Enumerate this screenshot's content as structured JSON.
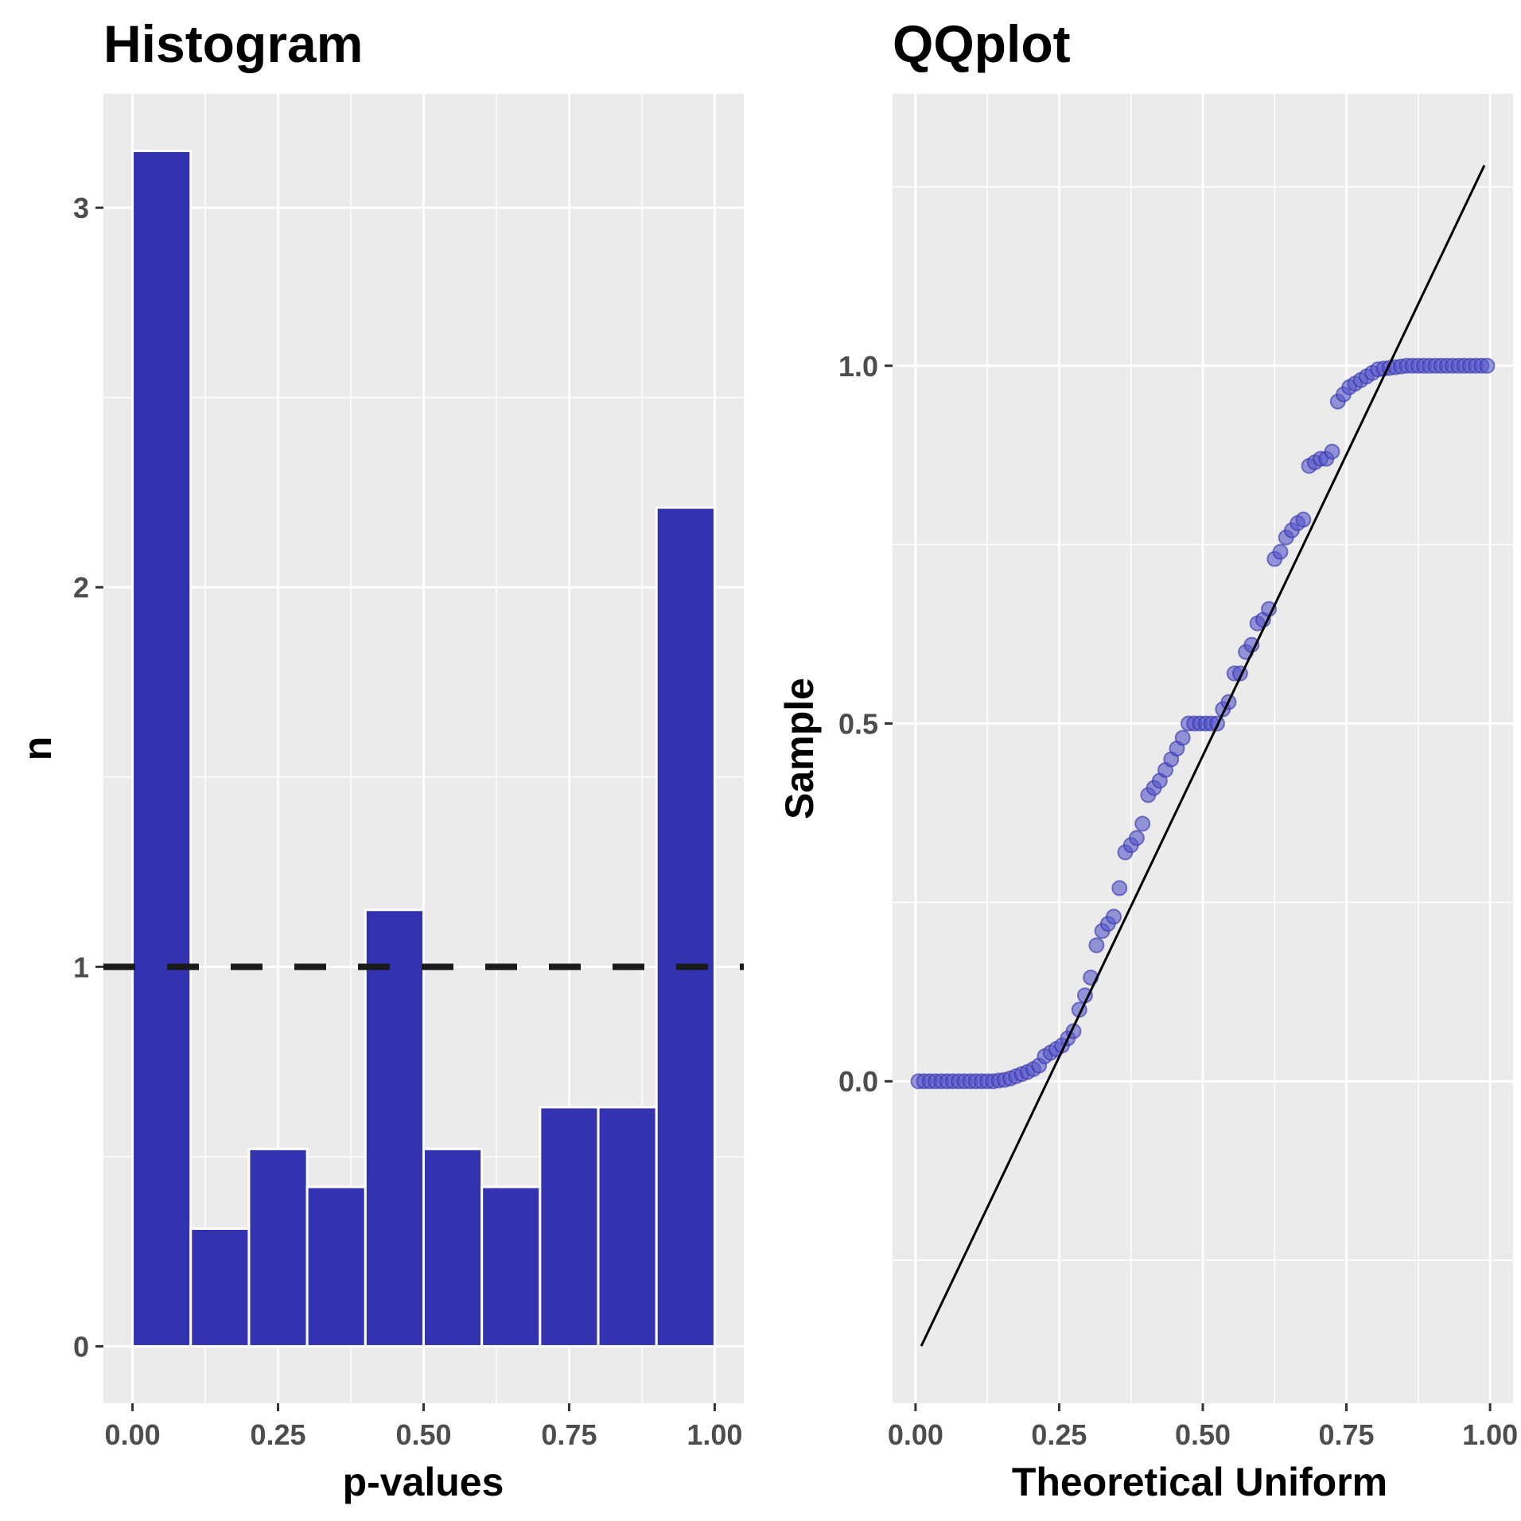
{
  "chart_data": [
    {
      "type": "bar",
      "title": "Histogram",
      "xlabel": "p-values",
      "ylabel": "n",
      "xlim": [
        -0.05,
        1.05
      ],
      "ylim": [
        -0.15,
        3.3
      ],
      "x_ticks": [
        0.0,
        0.25,
        0.5,
        0.75,
        1.0
      ],
      "x_tick_labels": [
        "0.00",
        "0.25",
        "0.50",
        "0.75",
        "1.00"
      ],
      "y_ticks": [
        0,
        1,
        2,
        3
      ],
      "y_tick_labels": [
        "0",
        "1",
        "2",
        "3"
      ],
      "bin_width": 0.1,
      "bin_centers": [
        0.05,
        0.15,
        0.25,
        0.35,
        0.45,
        0.55,
        0.65,
        0.75,
        0.85,
        0.95
      ],
      "values": [
        3.15,
        0.31,
        0.52,
        0.42,
        1.15,
        0.52,
        0.42,
        0.63,
        0.63,
        2.21
      ],
      "reference_line": {
        "y": 1,
        "style": "dashed"
      },
      "bar_color": "#3333b2",
      "grid": true
    },
    {
      "type": "scatter",
      "title": "QQplot",
      "xlabel": "Theoretical Uniform",
      "ylabel": "Sample",
      "xlim": [
        -0.04,
        1.04
      ],
      "ylim": [
        -0.45,
        1.38
      ],
      "x_ticks": [
        0.0,
        0.25,
        0.5,
        0.75,
        1.0
      ],
      "x_tick_labels": [
        "0.00",
        "0.25",
        "0.50",
        "0.75",
        "1.00"
      ],
      "y_ticks": [
        0.0,
        0.5,
        1.0
      ],
      "y_tick_labels": [
        "0.0",
        "0.5",
        "1.0"
      ],
      "point_color": "#5555cc",
      "reference_line": {
        "x": [
          0.01,
          0.99
        ],
        "y": [
          -0.37,
          1.28
        ]
      },
      "grid": true,
      "points": {
        "x": [
          0.005,
          0.015,
          0.025,
          0.035,
          0.045,
          0.055,
          0.065,
          0.075,
          0.085,
          0.095,
          0.105,
          0.115,
          0.125,
          0.135,
          0.145,
          0.155,
          0.165,
          0.175,
          0.185,
          0.195,
          0.205,
          0.215,
          0.225,
          0.235,
          0.245,
          0.255,
          0.265,
          0.275,
          0.285,
          0.295,
          0.305,
          0.315,
          0.325,
          0.335,
          0.345,
          0.355,
          0.365,
          0.375,
          0.385,
          0.395,
          0.405,
          0.415,
          0.425,
          0.435,
          0.445,
          0.455,
          0.465,
          0.475,
          0.485,
          0.495,
          0.505,
          0.515,
          0.525,
          0.535,
          0.545,
          0.555,
          0.565,
          0.575,
          0.585,
          0.595,
          0.605,
          0.615,
          0.625,
          0.635,
          0.645,
          0.655,
          0.665,
          0.675,
          0.685,
          0.695,
          0.705,
          0.715,
          0.725,
          0.735,
          0.745,
          0.755,
          0.765,
          0.775,
          0.785,
          0.795,
          0.805,
          0.815,
          0.825,
          0.835,
          0.845,
          0.855,
          0.865,
          0.875,
          0.885,
          0.895,
          0.905,
          0.915,
          0.925,
          0.935,
          0.945,
          0.955,
          0.965,
          0.975,
          0.985,
          0.995
        ],
        "y": [
          0.0,
          0.0,
          0.0,
          0.0,
          0.0,
          0.0,
          0.0,
          0.0,
          0.0,
          0.0,
          0.0,
          0.0,
          0.0,
          0.0,
          0.001,
          0.002,
          0.004,
          0.007,
          0.01,
          0.013,
          0.017,
          0.022,
          0.035,
          0.04,
          0.045,
          0.05,
          0.06,
          0.07,
          0.1,
          0.12,
          0.145,
          0.19,
          0.21,
          0.22,
          0.23,
          0.27,
          0.32,
          0.33,
          0.34,
          0.36,
          0.4,
          0.41,
          0.42,
          0.435,
          0.45,
          0.465,
          0.48,
          0.5,
          0.5,
          0.5,
          0.5,
          0.5,
          0.5,
          0.52,
          0.53,
          0.57,
          0.57,
          0.6,
          0.61,
          0.64,
          0.645,
          0.66,
          0.73,
          0.74,
          0.76,
          0.77,
          0.78,
          0.785,
          0.86,
          0.865,
          0.87,
          0.87,
          0.88,
          0.95,
          0.96,
          0.97,
          0.975,
          0.98,
          0.985,
          0.99,
          0.995,
          0.996,
          0.997,
          0.998,
          0.999,
          1.0,
          1.0,
          1.0,
          1.0,
          1.0,
          1.0,
          1.0,
          1.0,
          1.0,
          1.0,
          1.0,
          1.0,
          1.0,
          1.0,
          1.0
        ]
      }
    }
  ]
}
